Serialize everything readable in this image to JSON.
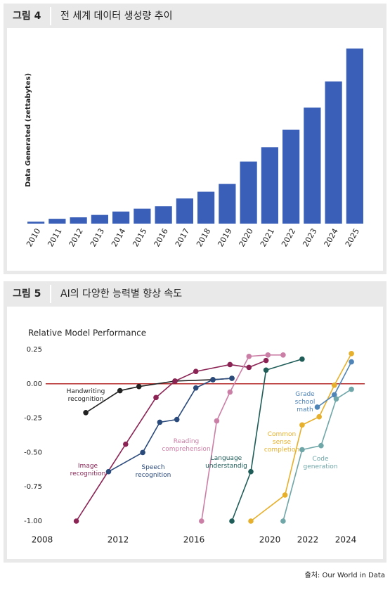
{
  "figures": [
    {
      "label": "그림 4",
      "title": "전 세계 데이터 생성량 추이",
      "chart_data": {
        "type": "bar",
        "ylabel": "Data Generated (zettabytes)",
        "categories": [
          "2010",
          "2011",
          "2012",
          "2013",
          "2014",
          "2015",
          "2016",
          "2017",
          "2018",
          "2019",
          "2020",
          "2021",
          "2022",
          "2023",
          "2024",
          "2025"
        ],
        "values": [
          2,
          5,
          6.5,
          9,
          12.5,
          15.5,
          18,
          26,
          33,
          41,
          64.2,
          79,
          97,
          120,
          147,
          181
        ],
        "color": "#3a5fb8"
      }
    },
    {
      "label": "그림 5",
      "title": "AI의 다양한 능력별 향상 속도",
      "chart_data": {
        "type": "line",
        "title": "Relative Model Performance",
        "xlim": [
          2008,
          2025
        ],
        "xticks": [
          2008,
          2012,
          2016,
          2020,
          2022,
          2024
        ],
        "ylim": [
          -1,
          0.25
        ],
        "yticks": [
          0.25,
          {
            "value": 0,
            "label": "0.00"
          },
          -0.25,
          {
            "value": -0.5,
            "label": "-0.50"
          },
          -0.75,
          {
            "value": -1,
            "label": "-1.00"
          }
        ],
        "reference_line": {
          "value": 0,
          "color": "#b52a2a"
        },
        "series": [
          {
            "name": "Handwriting recognition",
            "color": "#222222",
            "x": [
              2010.3,
              2012.1,
              2013.1,
              2015,
              2017,
              2018
            ],
            "values": [
              -0.21,
              -0.05,
              -0.02,
              0.02,
              0.03,
              0.04
            ]
          },
          {
            "name": "Image recognition",
            "color": "#8b2454",
            "x": [
              2009.8,
              2012.4,
              2014,
              2015,
              2016.1,
              2017.9,
              2018.9,
              2019.8
            ],
            "values": [
              -1,
              -0.44,
              -0.1,
              0.02,
              0.09,
              0.14,
              0.12,
              0.17
            ]
          },
          {
            "name": "Speech recognition",
            "color": "#2b4a7c",
            "x": [
              2011.5,
              2013.3,
              2014.2,
              2015.1,
              2016.1,
              2017,
              2018
            ],
            "values": [
              -0.64,
              -0.5,
              -0.28,
              -0.26,
              -0.03,
              0.03,
              0.04
            ]
          },
          {
            "name": "Reading comprehension",
            "color": "#cc7fa6",
            "x": [
              2016.4,
              2017.2,
              2017.9,
              2018.9,
              2019.9,
              2020.7
            ],
            "values": [
              -1,
              -0.27,
              -0.06,
              0.2,
              0.21,
              0.21
            ]
          },
          {
            "name": "Language understandig",
            "color": "#1e5c58",
            "x": [
              2018,
              2019,
              2019.8,
              2021.7
            ],
            "values": [
              -1,
              -0.64,
              0.1,
              0.18
            ]
          },
          {
            "name": "Common sense completion",
            "color": "#e6b02c",
            "x": [
              2019,
              2020.8,
              2021.7,
              2022.6,
              2023.4,
              2024.3
            ],
            "values": [
              -1,
              -0.81,
              -0.3,
              -0.24,
              -0.01,
              0.22
            ]
          },
          {
            "name": "Grade school math",
            "color": "#4f84b6",
            "x": [
              2022.5,
              2023.4,
              2024.3
            ],
            "values": [
              -0.17,
              -0.08,
              0.16
            ]
          },
          {
            "name": "Code generation",
            "color": "#6fa6a8",
            "x": [
              2020.7,
              2021.7,
              2022.7,
              2023.5,
              2024.3
            ],
            "values": [
              -1,
              -0.48,
              -0.45,
              -0.11,
              -0.04
            ]
          }
        ]
      }
    }
  ],
  "source": "출처: Our World in Data"
}
